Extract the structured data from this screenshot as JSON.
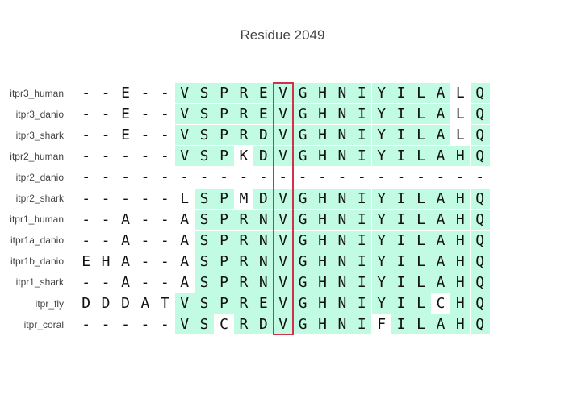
{
  "title": "Residue 2049",
  "highlight_color": "#c2fbe4",
  "box_color": "#d1314a",
  "highlight_column": 10,
  "rows": [
    {
      "name": "itpr3_human",
      "seq": "--E--VSPREVGHNIYILALQ",
      "hl": "000001111111111111101"
    },
    {
      "name": "itpr3_danio",
      "seq": "--E--VSPREVGHNIYILALQ",
      "hl": "000001111111111111101"
    },
    {
      "name": "itpr3_shark",
      "seq": "--E--VSPRDVGHNIYILALQ",
      "hl": "000001111111111111101"
    },
    {
      "name": "itpr2_human",
      "seq": "-----VSPKDVGHNIYILAHQ",
      "hl": "000001110111111111111"
    },
    {
      "name": "itpr2_danio",
      "seq": "---------------------",
      "hl": "000000000000000000000"
    },
    {
      "name": "itpr2_shark",
      "seq": "-----LSPMDVGHNIYILAHQ",
      "hl": "000000110111111111111"
    },
    {
      "name": "itpr1_human",
      "seq": "--A--ASPRNVGHNIYILAHQ",
      "hl": "000000111111111111111"
    },
    {
      "name": "itpr1a_danio",
      "seq": "--A--ASPRNVGHNIYILAHQ",
      "hl": "000000111111111111111"
    },
    {
      "name": "itpr1b_danio",
      "seq": "EHA--ASPRNVGHNIYILAHQ",
      "hl": "000000111111111111111"
    },
    {
      "name": "itpr1_shark",
      "seq": "--A--ASPRNVGHNIYILAHQ",
      "hl": "000000111111111111111"
    },
    {
      "name": "itpr_fly",
      "seq": "DDDATVSPREVGHNIYILCHQ",
      "hl": "000001111111111111011"
    },
    {
      "name": "itpr_coral",
      "seq": "-----VSCRDVGHNIFILAHQ",
      "hl": "000001101111111011111"
    }
  ]
}
